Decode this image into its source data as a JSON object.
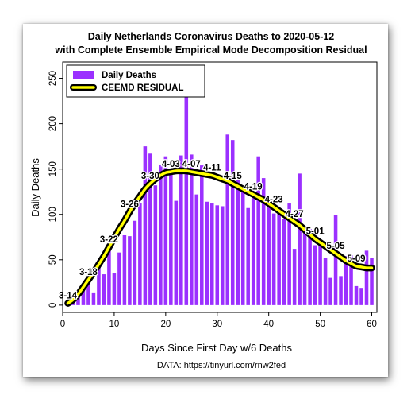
{
  "chart_data": {
    "type": "bar",
    "title": "Daily Netherlands Coronavirus Deaths to 2020-05-12",
    "subtitle": "with Complete Ensemble Empirical Mode Decomposition Residual",
    "xlabel": "Days Since First Day w/6 Deaths",
    "ylabel": "Daily Deaths",
    "caption": "DATA: https://tinyurl.com/rnw2fed",
    "xlim": [
      0,
      61
    ],
    "ylim": [
      -8,
      268
    ],
    "x_ticks": [
      0,
      10,
      20,
      30,
      40,
      50,
      60
    ],
    "y_ticks": [
      0,
      50,
      100,
      150,
      200,
      250
    ],
    "grid": false,
    "legend_position": "top-left",
    "colors": {
      "bars": "#9b30ff",
      "residual_outer": "#000000",
      "residual_inner": "#ffff00"
    },
    "series": [
      {
        "name": "Daily Deaths",
        "type": "bar",
        "x": [
          1,
          2,
          3,
          4,
          5,
          6,
          7,
          8,
          9,
          10,
          11,
          12,
          13,
          14,
          15,
          16,
          17,
          18,
          19,
          20,
          21,
          22,
          23,
          24,
          25,
          26,
          27,
          28,
          29,
          30,
          31,
          32,
          33,
          34,
          35,
          36,
          37,
          38,
          39,
          40,
          41,
          42,
          43,
          44,
          45,
          46,
          47,
          48,
          49,
          50,
          51,
          52,
          53,
          54,
          55,
          56,
          57,
          58,
          59,
          60
        ],
        "values": [
          6,
          4,
          15,
          20,
          24,
          14,
          43,
          34,
          63,
          35,
          58,
          77,
          76,
          93,
          112,
          175,
          167,
          132,
          155,
          164,
          148,
          115,
          165,
          234,
          166,
          122,
          154,
          114,
          112,
          110,
          109,
          188,
          182,
          139,
          131,
          107,
          118,
          164,
          140,
          117,
          101,
          101,
          95,
          112,
          62,
          145,
          86,
          84,
          66,
          65,
          52,
          30,
          99,
          32,
          54,
          55,
          21,
          19,
          60,
          52
        ]
      },
      {
        "name": "CEEMD RESIDUAL",
        "type": "line",
        "x": [
          1,
          2,
          3,
          4,
          5,
          6,
          7,
          8,
          9,
          10,
          11,
          12,
          13,
          14,
          15,
          16,
          17,
          18,
          19,
          20,
          21,
          22,
          23,
          24,
          25,
          26,
          27,
          28,
          29,
          30,
          31,
          32,
          33,
          34,
          35,
          36,
          37,
          38,
          39,
          40,
          41,
          42,
          43,
          44,
          45,
          46,
          47,
          48,
          49,
          50,
          51,
          52,
          53,
          54,
          55,
          56,
          57,
          58,
          59,
          60
        ],
        "values": [
          2,
          6,
          12,
          20,
          28,
          36,
          45,
          54,
          64,
          74,
          84,
          93,
          103,
          112,
          120,
          128,
          134,
          139,
          143,
          146,
          147,
          148,
          148,
          148,
          147,
          146,
          145,
          144,
          143,
          141,
          139,
          137,
          134,
          131,
          128,
          125,
          122,
          119,
          116,
          112,
          108,
          104,
          100,
          96,
          92,
          88,
          83,
          78,
          73,
          69,
          65,
          61,
          57,
          53,
          49,
          46,
          43,
          42,
          41,
          41
        ]
      }
    ],
    "point_labels": [
      {
        "x": 1,
        "label": "3-14"
      },
      {
        "x": 5,
        "label": "3-18"
      },
      {
        "x": 9,
        "label": "3-22"
      },
      {
        "x": 13,
        "label": "3-26"
      },
      {
        "x": 17,
        "label": "3-30"
      },
      {
        "x": 21,
        "label": "4-03"
      },
      {
        "x": 25,
        "label": "4-07"
      },
      {
        "x": 29,
        "label": "4-11"
      },
      {
        "x": 33,
        "label": "4-15"
      },
      {
        "x": 37,
        "label": "4-19"
      },
      {
        "x": 41,
        "label": "4-23"
      },
      {
        "x": 45,
        "label": "4-27"
      },
      {
        "x": 49,
        "label": "5-01"
      },
      {
        "x": 53,
        "label": "5-05"
      },
      {
        "x": 57,
        "label": "5-09"
      }
    ]
  }
}
